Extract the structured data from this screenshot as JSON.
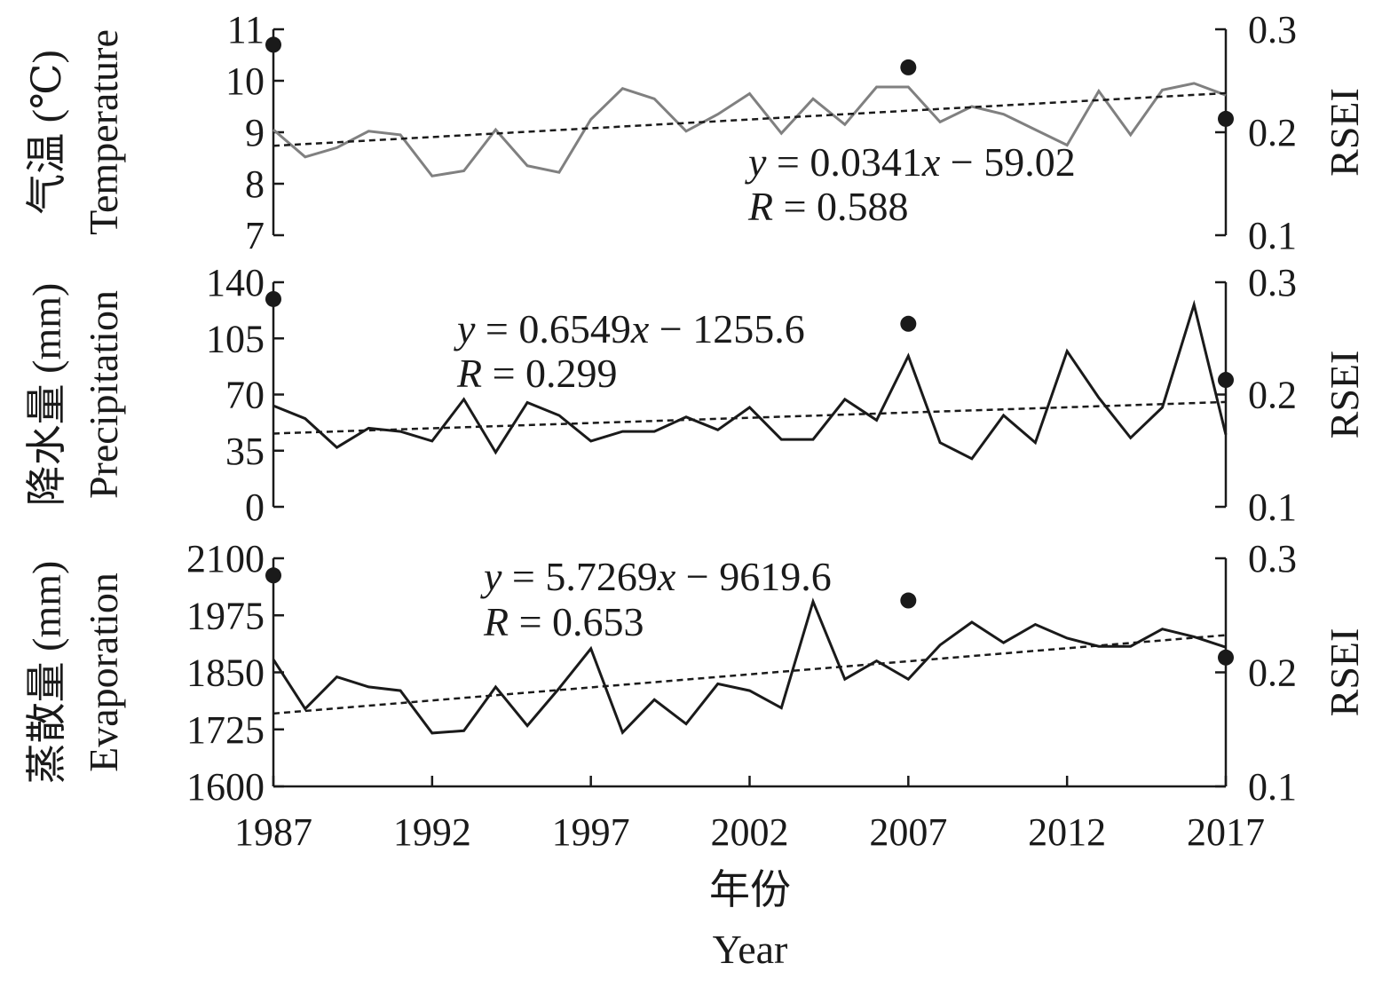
{
  "x_axis": {
    "ticks": [
      "1987",
      "1992",
      "1997",
      "2002",
      "2007",
      "2012",
      "2017"
    ],
    "title_zh": "年份",
    "title_en": "Year"
  },
  "chart_data": [
    {
      "type": "line",
      "panel": "temperature",
      "ylabel_zh": "气温 (℃)",
      "ylabel_en": "Temperature",
      "y2label": "RSEI",
      "ylim": [
        7,
        11
      ],
      "yticks": [
        "7",
        "8",
        "9",
        "10",
        "11"
      ],
      "y2lim": [
        0.1,
        0.3
      ],
      "y2ticks": [
        "0.1",
        "0.2",
        "0.3"
      ],
      "line_color": "#808080",
      "x": [
        1987,
        1988,
        1989,
        1990,
        1991,
        1992,
        1993,
        1994,
        1995,
        1996,
        1997,
        1998,
        1999,
        2000,
        2001,
        2002,
        2003,
        2004,
        2005,
        2006,
        2007,
        2008,
        2009,
        2010,
        2011,
        2012,
        2013,
        2014,
        2015,
        2016,
        2017
      ],
      "values": [
        9.05,
        8.52,
        8.7,
        9.02,
        8.95,
        8.15,
        8.25,
        9.05,
        8.35,
        8.22,
        9.25,
        9.85,
        9.65,
        9.02,
        9.35,
        9.75,
        8.98,
        9.65,
        9.15,
        9.88,
        9.88,
        9.2,
        9.5,
        9.35,
        9.05,
        8.75,
        9.8,
        8.95,
        9.82,
        9.95,
        9.72
      ],
      "trend": {
        "slope": 0.0341,
        "intercept": -59.02,
        "x_range": [
          1987,
          2017
        ]
      },
      "equation": {
        "lhs": "y",
        "rhs": " = 0.0341",
        "x": "x",
        "tail": " − 59.02"
      },
      "r_text": {
        "lhs": "R",
        "rhs": " = 0.588"
      },
      "rsei_points": [
        {
          "x": 1987,
          "y": 0.285
        },
        {
          "x": 2007,
          "y": 0.263
        },
        {
          "x": 2017,
          "y": 0.213
        }
      ]
    },
    {
      "type": "line",
      "panel": "precipitation",
      "ylabel_zh": "降水量 (mm)",
      "ylabel_en": "Precipitation",
      "y2label": "RSEI",
      "ylim": [
        0,
        140
      ],
      "yticks": [
        "0",
        "35",
        "70",
        "105",
        "140"
      ],
      "y2lim": [
        0.1,
        0.3
      ],
      "y2ticks": [
        "0.1",
        "0.2",
        "0.3"
      ],
      "line_color": "#1a1a1a",
      "x": [
        1987,
        1988,
        1989,
        1990,
        1991,
        1992,
        1993,
        1994,
        1995,
        1996,
        1997,
        1998,
        1999,
        2000,
        2001,
        2002,
        2003,
        2004,
        2005,
        2006,
        2007,
        2008,
        2009,
        2010,
        2011,
        2012,
        2013,
        2014,
        2015,
        2016,
        2017
      ],
      "values": [
        63,
        55,
        37,
        49,
        47,
        41,
        67,
        34,
        65,
        57,
        41,
        47,
        47,
        56,
        48,
        62,
        42,
        42,
        67,
        54,
        94,
        40,
        30,
        57,
        40,
        97,
        68,
        43,
        62,
        126,
        45
      ],
      "trend": {
        "slope": 0.6549,
        "intercept": -1255.6,
        "x_range": [
          1987,
          2017
        ]
      },
      "equation": {
        "lhs": "y",
        "rhs": " = 0.6549",
        "x": "x",
        "tail": " − 1255.6"
      },
      "r_text": {
        "lhs": "R",
        "rhs": " = 0.299"
      },
      "rsei_points": [
        {
          "x": 1987,
          "y": 0.285
        },
        {
          "x": 2007,
          "y": 0.263
        },
        {
          "x": 2017,
          "y": 0.213
        }
      ]
    },
    {
      "type": "line",
      "panel": "evaporation",
      "ylabel_zh": "蒸散量 (mm)",
      "ylabel_en": "Evaporation",
      "y2label": "RSEI",
      "ylim": [
        1600,
        2100
      ],
      "yticks": [
        "1600",
        "1725",
        "1850",
        "1975",
        "2100"
      ],
      "y2lim": [
        0.1,
        0.3
      ],
      "y2ticks": [
        "0.1",
        "0.2",
        "0.3"
      ],
      "line_color": "#1a1a1a",
      "x": [
        1987,
        1988,
        1989,
        1990,
        1991,
        1992,
        1993,
        1994,
        1995,
        1996,
        1997,
        1998,
        1999,
        2000,
        2001,
        2002,
        2003,
        2004,
        2005,
        2006,
        2007,
        2008,
        2009,
        2010,
        2011,
        2012,
        2013,
        2014,
        2015,
        2016,
        2017
      ],
      "values": [
        1878,
        1770,
        1840,
        1818,
        1810,
        1717,
        1722,
        1818,
        1733,
        1815,
        1902,
        1718,
        1790,
        1737,
        1825,
        1810,
        1772,
        2005,
        1835,
        1875,
        1835,
        1910,
        1960,
        1915,
        1955,
        1925,
        1907,
        1907,
        1945,
        1928,
        1905
      ],
      "trend": {
        "slope": 5.7269,
        "intercept": -9619.6,
        "x_range": [
          1987,
          2017
        ]
      },
      "equation": {
        "lhs": "y",
        "rhs": " = 5.7269",
        "x": "x",
        "tail": " − 9619.6"
      },
      "r_text": {
        "lhs": "R",
        "rhs": " = 0.653"
      },
      "rsei_points": [
        {
          "x": 1987,
          "y": 0.285
        },
        {
          "x": 2007,
          "y": 0.263
        },
        {
          "x": 2017,
          "y": 0.213
        }
      ]
    }
  ]
}
